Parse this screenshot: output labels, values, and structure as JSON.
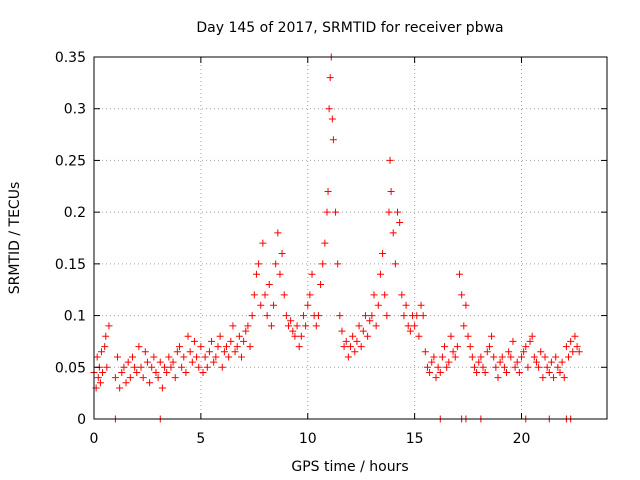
{
  "chart_data": {
    "type": "scatter",
    "title": "Day 145 of 2017, SRMTID for receiver pbwa",
    "xlabel": "GPS time / hours",
    "ylabel": "SRMTID / TECUs",
    "xlim": [
      0,
      24
    ],
    "ylim": [
      0,
      0.35
    ],
    "xticks": [
      0,
      5,
      10,
      15,
      20
    ],
    "xtick_labels": [
      "0",
      "5",
      "10",
      "15",
      "20"
    ],
    "yticks": [
      0,
      0.05,
      0.1,
      0.15,
      0.2,
      0.25,
      0.3,
      0.35
    ],
    "ytick_labels": [
      "0",
      "0.05",
      "0.1",
      "0.15",
      "0.2",
      "0.25",
      "0.3",
      "0.35"
    ],
    "grid": true,
    "marker": "+",
    "color": "#ff0000",
    "series": [
      {
        "name": "SRMTID",
        "x": [
          0.0,
          0.1,
          0.15,
          0.2,
          0.25,
          0.3,
          0.35,
          0.4,
          0.5,
          0.55,
          0.6,
          0.7,
          1.0,
          1.1,
          1.2,
          1.3,
          1.4,
          1.5,
          1.6,
          1.7,
          1.8,
          1.9,
          2.0,
          2.1,
          2.2,
          2.3,
          2.4,
          2.5,
          2.6,
          2.7,
          2.8,
          2.9,
          3.0,
          3.1,
          3.2,
          3.3,
          3.4,
          3.5,
          3.6,
          3.7,
          3.8,
          3.9,
          4.0,
          4.1,
          4.2,
          4.3,
          4.4,
          4.5,
          4.6,
          4.7,
          4.8,
          4.9,
          5.0,
          5.1,
          5.2,
          5.3,
          5.4,
          5.5,
          5.6,
          5.7,
          5.8,
          5.9,
          6.0,
          6.1,
          6.2,
          6.3,
          6.4,
          6.5,
          6.6,
          6.7,
          6.8,
          6.9,
          7.0,
          7.1,
          7.2,
          7.3,
          7.4,
          7.5,
          7.6,
          7.7,
          7.8,
          7.9,
          8.0,
          8.1,
          8.2,
          8.3,
          8.4,
          8.5,
          8.6,
          8.7,
          8.8,
          8.9,
          9.0,
          9.1,
          9.2,
          9.3,
          9.4,
          9.5,
          9.6,
          9.7,
          9.8,
          9.9,
          10.0,
          10.1,
          10.2,
          10.3,
          10.4,
          10.5,
          10.6,
          10.7,
          10.8,
          10.9,
          10.95,
          11.0,
          11.05,
          11.1,
          11.15,
          11.2,
          11.3,
          11.4,
          11.5,
          11.6,
          11.7,
          11.8,
          11.9,
          12.0,
          12.1,
          12.2,
          12.3,
          12.4,
          12.5,
          12.6,
          12.7,
          12.8,
          12.9,
          13.0,
          13.1,
          13.2,
          13.3,
          13.4,
          13.5,
          13.6,
          13.7,
          13.8,
          13.85,
          13.9,
          14.0,
          14.1,
          14.2,
          14.3,
          14.4,
          14.5,
          14.6,
          14.7,
          14.8,
          14.9,
          15.0,
          15.1,
          15.2,
          15.3,
          15.4,
          15.5,
          15.6,
          15.7,
          15.8,
          15.9,
          16.0,
          16.1,
          16.2,
          16.3,
          16.4,
          16.5,
          16.6,
          16.7,
          16.8,
          16.9,
          17.0,
          17.1,
          17.2,
          17.3,
          17.4,
          17.5,
          17.6,
          17.7,
          17.8,
          17.9,
          18.0,
          18.1,
          18.2,
          18.3,
          18.4,
          18.5,
          18.6,
          18.7,
          18.8,
          18.9,
          19.0,
          19.1,
          19.2,
          19.3,
          19.4,
          19.5,
          19.6,
          19.7,
          19.8,
          19.9,
          20.0,
          20.1,
          20.2,
          20.3,
          20.4,
          20.5,
          20.6,
          20.7,
          20.8,
          20.9,
          21.0,
          21.1,
          21.2,
          21.3,
          21.4,
          21.5,
          21.6,
          21.7,
          21.8,
          21.9,
          22.0,
          22.1,
          22.2,
          22.3,
          22.4,
          22.5,
          22.6,
          22.7
        ],
        "y": [
          0.045,
          0.03,
          0.06,
          0.04,
          0.05,
          0.035,
          0.065,
          0.045,
          0.07,
          0.08,
          0.05,
          0.09,
          0.04,
          0.06,
          0.03,
          0.045,
          0.05,
          0.035,
          0.055,
          0.04,
          0.06,
          0.05,
          0.045,
          0.07,
          0.05,
          0.04,
          0.065,
          0.055,
          0.035,
          0.05,
          0.06,
          0.045,
          0.04,
          0.055,
          0.03,
          0.05,
          0.045,
          0.06,
          0.05,
          0.055,
          0.04,
          0.065,
          0.07,
          0.05,
          0.06,
          0.045,
          0.08,
          0.065,
          0.055,
          0.075,
          0.06,
          0.05,
          0.07,
          0.045,
          0.06,
          0.05,
          0.065,
          0.075,
          0.055,
          0.06,
          0.07,
          0.08,
          0.05,
          0.065,
          0.07,
          0.06,
          0.075,
          0.09,
          0.065,
          0.07,
          0.08,
          0.06,
          0.075,
          0.085,
          0.09,
          0.07,
          0.1,
          0.12,
          0.14,
          0.15,
          0.11,
          0.17,
          0.12,
          0.1,
          0.13,
          0.09,
          0.11,
          0.15,
          0.18,
          0.14,
          0.16,
          0.12,
          0.1,
          0.09,
          0.095,
          0.085,
          0.08,
          0.09,
          0.07,
          0.08,
          0.1,
          0.09,
          0.11,
          0.12,
          0.14,
          0.1,
          0.09,
          0.1,
          0.13,
          0.15,
          0.17,
          0.2,
          0.22,
          0.3,
          0.33,
          0.35,
          0.29,
          0.27,
          0.2,
          0.15,
          0.1,
          0.085,
          0.07,
          0.075,
          0.06,
          0.07,
          0.08,
          0.065,
          0.075,
          0.09,
          0.07,
          0.085,
          0.1,
          0.08,
          0.095,
          0.1,
          0.12,
          0.09,
          0.11,
          0.14,
          0.16,
          0.12,
          0.1,
          0.2,
          0.25,
          0.22,
          0.18,
          0.15,
          0.2,
          0.19,
          0.12,
          0.1,
          0.11,
          0.09,
          0.085,
          0.1,
          0.09,
          0.1,
          0.08,
          0.11,
          0.1,
          0.065,
          0.05,
          0.045,
          0.055,
          0.06,
          0.04,
          0.05,
          0.045,
          0.06,
          0.07,
          0.05,
          0.055,
          0.08,
          0.065,
          0.06,
          0.07,
          0.14,
          0.12,
          0.09,
          0.11,
          0.08,
          0.07,
          0.06,
          0.05,
          0.045,
          0.055,
          0.06,
          0.05,
          0.045,
          0.065,
          0.07,
          0.08,
          0.06,
          0.05,
          0.04,
          0.055,
          0.06,
          0.05,
          0.045,
          0.065,
          0.06,
          0.075,
          0.05,
          0.055,
          0.045,
          0.06,
          0.065,
          0.07,
          0.05,
          0.075,
          0.08,
          0.06,
          0.055,
          0.05,
          0.065,
          0.04,
          0.06,
          0.05,
          0.045,
          0.055,
          0.04,
          0.06,
          0.05,
          0.045,
          0.055,
          0.04,
          0.07,
          0.06,
          0.075,
          0.065,
          0.08,
          0.07,
          0.065
        ]
      }
    ],
    "zero_points_x": [
      1.0,
      3.1,
      16.2,
      17.2,
      17.4,
      18.1,
      20.2,
      21.3,
      22.1,
      22.3
    ]
  }
}
